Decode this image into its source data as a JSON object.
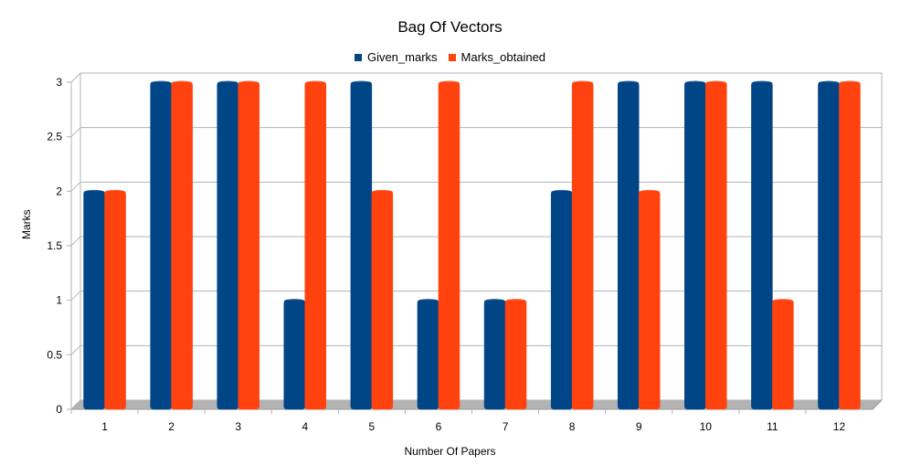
{
  "chart_data": {
    "type": "bar",
    "title": "Bag Of Vectors",
    "xlabel": "Number Of Papers",
    "ylabel": "Marks",
    "categories": [
      "1",
      "2",
      "3",
      "4",
      "5",
      "6",
      "7",
      "8",
      "9",
      "10",
      "11",
      "12"
    ],
    "series": [
      {
        "name": "Given_marks",
        "color": "#004586",
        "values": [
          2,
          3,
          3,
          1,
          3,
          1,
          1,
          2,
          3,
          3,
          3,
          3
        ]
      },
      {
        "name": "Marks_obtained",
        "color": "#ff420e",
        "values": [
          2,
          3,
          3,
          3,
          2,
          3,
          1,
          3,
          2,
          3,
          1,
          3
        ]
      }
    ],
    "ylim": [
      0,
      3
    ],
    "yticks": [
      "0",
      "0.5",
      "1",
      "1.5",
      "2",
      "2.5",
      "3"
    ],
    "grid": true,
    "legend_position": "top"
  }
}
